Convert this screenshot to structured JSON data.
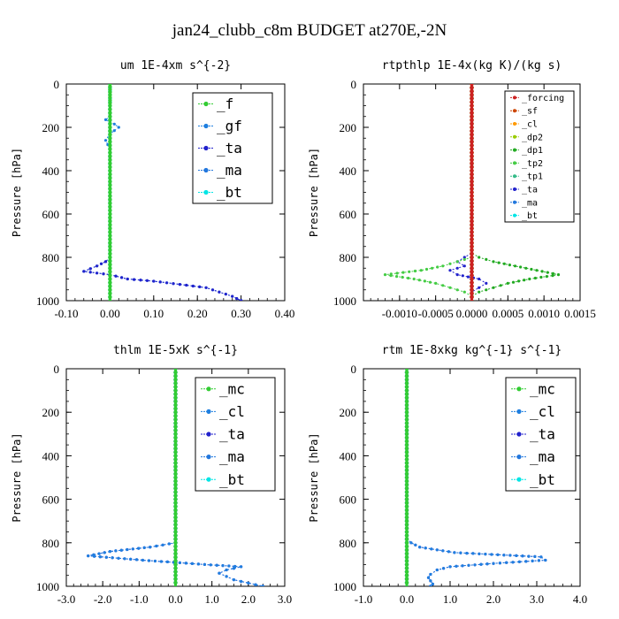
{
  "figure": {
    "title": "jan24_clubb_c8m  BUDGET at270E,-2N"
  },
  "chart_data": [
    {
      "type": "line",
      "title": "um  1E-4xm s^{-2}",
      "ylabel": "Pressure [hPa]",
      "xlim": [
        -0.1,
        0.4
      ],
      "ylim": [
        1000,
        0
      ],
      "xticks": [
        "-0.10",
        "0.00",
        "0.10",
        "0.20",
        "0.30",
        "0.40"
      ],
      "xtick_values": [
        -0.1,
        0.0,
        0.1,
        0.2,
        0.3,
        0.4
      ],
      "yticks": [
        "0",
        "200",
        "400",
        "600",
        "800",
        "1000"
      ],
      "ytick_values": [
        0,
        200,
        400,
        600,
        800,
        1000
      ],
      "legend_position": "top-right",
      "series": [
        {
          "name": "_f",
          "color": "#33cc33",
          "y": [
            0,
            25,
            50,
            75,
            100,
            150,
            200,
            250,
            300,
            400,
            500,
            600,
            700,
            800,
            850,
            900,
            950,
            1000
          ],
          "x": [
            0,
            0,
            0,
            0,
            0,
            0,
            0,
            0,
            0,
            0,
            0,
            0,
            0,
            0,
            0,
            0,
            0,
            0
          ]
        },
        {
          "name": "_gf",
          "color": "#1f7fdf",
          "y": [
            0,
            150,
            165,
            185,
            200,
            230,
            260,
            300
          ],
          "x": [
            0,
            0,
            -0.01,
            0.01,
            0.02,
            0,
            -0.01,
            0
          ]
        },
        {
          "name": "_ta",
          "color": "#2222cc",
          "y": [
            0,
            400,
            800,
            820,
            840,
            865,
            880,
            900,
            910,
            925,
            940,
            960,
            980,
            1000
          ],
          "x": [
            0,
            0,
            0,
            -0.01,
            -0.03,
            -0.06,
            0.0,
            0.04,
            0.1,
            0.16,
            0.22,
            0.25,
            0.28,
            0.3
          ]
        },
        {
          "name": "_ma",
          "color": "#2277dd",
          "y": [
            0,
            800,
            820,
            840,
            865,
            880,
            900,
            910,
            925,
            940,
            960,
            980,
            1000
          ],
          "x": [
            0,
            0,
            -0.01,
            -0.03,
            -0.06,
            0.0,
            0.04,
            0.1,
            0.16,
            0.22,
            0.25,
            0.28,
            0.3
          ]
        },
        {
          "name": "_bt",
          "color": "#00e5e5",
          "y": [
            0,
            200,
            400,
            600,
            800,
            900,
            1000
          ],
          "x": [
            0,
            0,
            0,
            0,
            0,
            0,
            0
          ]
        }
      ]
    },
    {
      "type": "line",
      "title": "rtpthlp  1E-4x(kg K)/(kg s)",
      "ylabel": "Pressure [hPa]",
      "xlim": [
        -0.0015,
        0.0015
      ],
      "ylim": [
        1000,
        0
      ],
      "xticks": [
        "-0.0010",
        "-0.0005",
        "0.0000",
        "0.0005",
        "0.0010",
        "0.0015"
      ],
      "xtick_values": [
        -0.001,
        -0.0005,
        0.0,
        0.0005,
        0.001,
        0.0015
      ],
      "yticks": [
        "0",
        "200",
        "400",
        "600",
        "800",
        "1000"
      ],
      "ytick_values": [
        0,
        200,
        400,
        600,
        800,
        1000
      ],
      "legend_position": "top-right",
      "series": [
        {
          "name": "_forcing",
          "color": "#cc2222",
          "y": [
            0,
            200,
            400,
            600,
            800,
            1000
          ],
          "x": [
            0,
            0,
            0,
            0,
            0,
            0
          ]
        },
        {
          "name": "_sf",
          "color": "#cc4400",
          "y": [
            0,
            200,
            400,
            600,
            800,
            1000
          ],
          "x": [
            0,
            0,
            0,
            0,
            0,
            0
          ]
        },
        {
          "name": "_cl",
          "color": "#ff9900",
          "y": [
            0,
            200,
            400,
            600,
            800,
            1000
          ],
          "x": [
            0,
            0,
            0,
            0,
            0,
            0
          ]
        },
        {
          "name": "_dp2",
          "color": "#99cc00",
          "y": [
            0,
            200,
            400,
            600,
            800,
            1000
          ],
          "x": [
            0,
            0,
            0,
            0,
            0,
            0
          ]
        },
        {
          "name": "_dp1",
          "color": "#22aa22",
          "y": [
            0,
            780,
            800,
            820,
            840,
            860,
            880,
            900,
            920,
            940,
            960,
            980,
            1000
          ],
          "x": [
            0,
            0,
            0.0001,
            0.0003,
            0.0006,
            0.0009,
            0.0012,
            0.0008,
            0.0005,
            0.0003,
            0.0001,
            0,
            0
          ]
        },
        {
          "name": "_tp2",
          "color": "#44cc44",
          "y": [
            0,
            800,
            820,
            840,
            860,
            880,
            900,
            920,
            940,
            960,
            980,
            1000
          ],
          "x": [
            0,
            0,
            -0.0002,
            -0.0004,
            -0.0007,
            -0.0012,
            -0.0008,
            -0.0005,
            -0.0003,
            -0.0001,
            0,
            0
          ]
        },
        {
          "name": "_tp1",
          "color": "#33bb88",
          "y": [
            0,
            200,
            400,
            600,
            800,
            1000
          ],
          "x": [
            0,
            0,
            0,
            0,
            0,
            0
          ]
        },
        {
          "name": "_ta",
          "color": "#2222cc",
          "y": [
            0,
            780,
            800,
            820,
            840,
            860,
            880,
            900,
            920,
            940,
            960,
            980,
            1000
          ],
          "x": [
            0,
            0,
            -0.0001,
            -0.0002,
            -0.0001,
            -0.0003,
            -0.0002,
            0.0001,
            0.0002,
            0.0001,
            0,
            0,
            0
          ]
        },
        {
          "name": "_ma",
          "color": "#2277dd",
          "y": [
            0,
            200,
            400,
            600,
            800,
            1000
          ],
          "x": [
            0,
            0,
            0,
            0,
            0,
            0
          ]
        },
        {
          "name": "_bt",
          "color": "#00e5e5",
          "y": [
            0,
            200,
            400,
            600,
            800,
            1000
          ],
          "x": [
            0,
            0,
            0,
            0,
            0,
            0
          ]
        }
      ]
    },
    {
      "type": "line",
      "title": "thlm  1E-5xK  s^{-1}",
      "ylabel": "Pressure [hPa]",
      "xlim": [
        -3.0,
        3.0
      ],
      "ylim": [
        1000,
        0
      ],
      "xticks": [
        "-3.0",
        "-2.0",
        "-1.0",
        "0.0",
        "1.0",
        "2.0",
        "3.0"
      ],
      "xtick_values": [
        -3.0,
        -2.0,
        -1.0,
        0.0,
        1.0,
        2.0,
        3.0
      ],
      "yticks": [
        "0",
        "200",
        "400",
        "600",
        "800",
        "1000"
      ],
      "ytick_values": [
        0,
        200,
        400,
        600,
        800,
        1000
      ],
      "legend_position": "top-right",
      "series": [
        {
          "name": "_mc",
          "color": "#33cc33",
          "y": [
            0,
            200,
            400,
            600,
            800,
            900,
            1000
          ],
          "x": [
            0,
            0,
            0,
            0,
            0,
            0,
            0
          ]
        },
        {
          "name": "_cl",
          "color": "#1f7fdf",
          "y": [
            0,
            800,
            820,
            840,
            860,
            880,
            900,
            910,
            925,
            940,
            955,
            970,
            985,
            1000
          ],
          "x": [
            0,
            0,
            -0.7,
            -1.8,
            -2.4,
            -0.9,
            0.8,
            1.8,
            1.4,
            1.2,
            1.4,
            1.6,
            2.0,
            2.4
          ]
        },
        {
          "name": "_ta",
          "color": "#2222cc",
          "y": [
            0,
            800,
            820,
            840,
            860,
            880,
            900,
            910,
            925,
            940,
            955,
            970,
            985,
            1000
          ],
          "x": [
            0,
            0,
            -0.7,
            -1.8,
            -2.4,
            -0.9,
            0.8,
            1.8,
            1.4,
            1.2,
            1.4,
            1.6,
            2.0,
            2.4
          ]
        },
        {
          "name": "_ma",
          "color": "#2277dd",
          "y": [
            0,
            200,
            400,
            600,
            800,
            1000
          ],
          "x": [
            0,
            0,
            0,
            0,
            0,
            0
          ]
        },
        {
          "name": "_bt",
          "color": "#00e5e5",
          "y": [
            0,
            200,
            400,
            600,
            800,
            1000
          ],
          "x": [
            0,
            0,
            0,
            0,
            0,
            0
          ]
        }
      ]
    },
    {
      "type": "line",
      "title": "rtm  1E-8xkg kg^{-1} s^{-1}",
      "ylabel": "Pressure [hPa]",
      "xlim": [
        -1.0,
        4.0
      ],
      "ylim": [
        1000,
        0
      ],
      "xticks": [
        "-1.0",
        "0.0",
        "1.0",
        "2.0",
        "3.0",
        "4.0"
      ],
      "xtick_values": [
        -1.0,
        0.0,
        1.0,
        2.0,
        3.0,
        4.0
      ],
      "yticks": [
        "0",
        "200",
        "400",
        "600",
        "800",
        "1000"
      ],
      "ytick_values": [
        0,
        200,
        400,
        600,
        800,
        1000
      ],
      "legend_position": "top-right",
      "series": [
        {
          "name": "_mc",
          "color": "#33cc33",
          "y": [
            0,
            200,
            400,
            600,
            800,
            900,
            1000
          ],
          "x": [
            0,
            0,
            0,
            0,
            0,
            0,
            0
          ]
        },
        {
          "name": "_cl",
          "color": "#1f7fdf",
          "y": [
            0,
            780,
            800,
            820,
            845,
            865,
            880,
            895,
            910,
            925,
            945,
            960,
            975,
            990,
            1000
          ],
          "x": [
            0,
            0,
            0.1,
            0.3,
            1.1,
            3.1,
            3.2,
            2.0,
            1.0,
            0.7,
            0.55,
            0.5,
            0.55,
            0.6,
            0.55
          ]
        },
        {
          "name": "_ta",
          "color": "#2222cc",
          "y": [
            0,
            780,
            800,
            820,
            845,
            865,
            880,
            895,
            910,
            925,
            945,
            960,
            975,
            990,
            1000
          ],
          "x": [
            0,
            0,
            0.1,
            0.3,
            1.1,
            3.1,
            3.2,
            2.0,
            1.0,
            0.7,
            0.55,
            0.5,
            0.55,
            0.6,
            0.55
          ]
        },
        {
          "name": "_ma",
          "color": "#2277dd",
          "y": [
            0,
            200,
            400,
            600,
            800,
            1000
          ],
          "x": [
            0,
            0,
            0,
            0,
            0,
            0
          ]
        },
        {
          "name": "_bt",
          "color": "#00e5e5",
          "y": [
            0,
            200,
            400,
            600,
            800,
            1000
          ],
          "x": [
            0,
            0,
            0,
            0,
            0,
            0
          ]
        }
      ]
    }
  ]
}
